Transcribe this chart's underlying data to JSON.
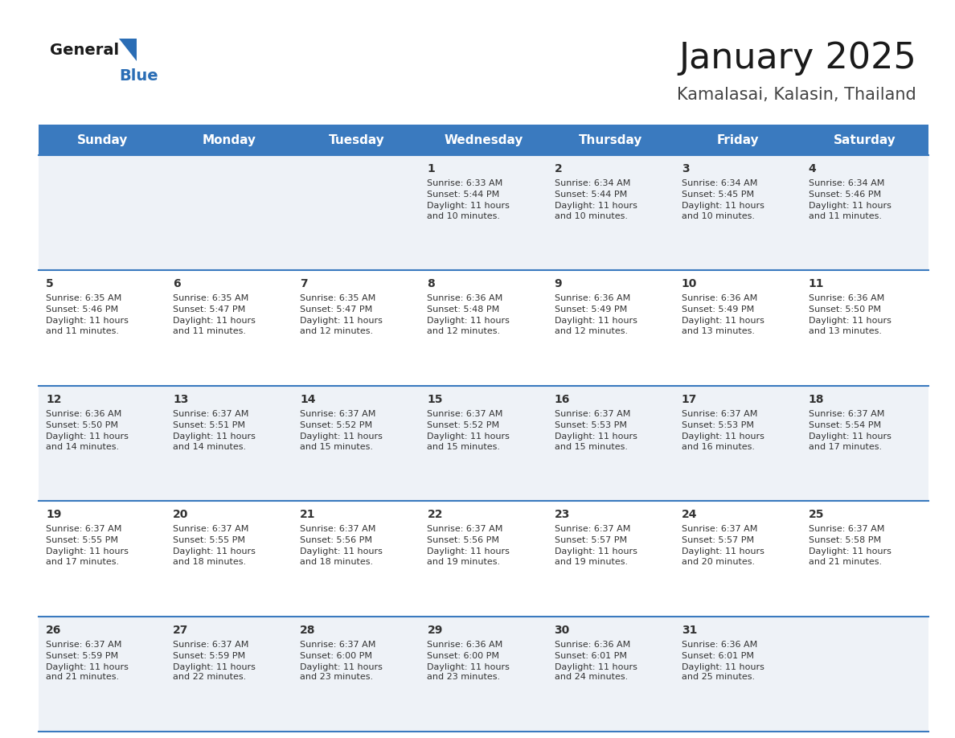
{
  "title": "January 2025",
  "subtitle": "Kamalasai, Kalasin, Thailand",
  "days_of_week": [
    "Sunday",
    "Monday",
    "Tuesday",
    "Wednesday",
    "Thursday",
    "Friday",
    "Saturday"
  ],
  "header_bg": "#3a7abf",
  "header_text": "#ffffff",
  "row_bg_odd": "#eef2f7",
  "row_bg_even": "#ffffff",
  "divider_color": "#3a7abf",
  "text_color": "#333333",
  "title_color": "#1a1a1a",
  "subtitle_color": "#444444",
  "calendar_data": [
    [
      null,
      null,
      null,
      {
        "day": 1,
        "sunrise": "6:33 AM",
        "sunset": "5:44 PM",
        "daylight": "11 hours\nand 10 minutes."
      },
      {
        "day": 2,
        "sunrise": "6:34 AM",
        "sunset": "5:44 PM",
        "daylight": "11 hours\nand 10 minutes."
      },
      {
        "day": 3,
        "sunrise": "6:34 AM",
        "sunset": "5:45 PM",
        "daylight": "11 hours\nand 10 minutes."
      },
      {
        "day": 4,
        "sunrise": "6:34 AM",
        "sunset": "5:46 PM",
        "daylight": "11 hours\nand 11 minutes."
      }
    ],
    [
      {
        "day": 5,
        "sunrise": "6:35 AM",
        "sunset": "5:46 PM",
        "daylight": "11 hours\nand 11 minutes."
      },
      {
        "day": 6,
        "sunrise": "6:35 AM",
        "sunset": "5:47 PM",
        "daylight": "11 hours\nand 11 minutes."
      },
      {
        "day": 7,
        "sunrise": "6:35 AM",
        "sunset": "5:47 PM",
        "daylight": "11 hours\nand 12 minutes."
      },
      {
        "day": 8,
        "sunrise": "6:36 AM",
        "sunset": "5:48 PM",
        "daylight": "11 hours\nand 12 minutes."
      },
      {
        "day": 9,
        "sunrise": "6:36 AM",
        "sunset": "5:49 PM",
        "daylight": "11 hours\nand 12 minutes."
      },
      {
        "day": 10,
        "sunrise": "6:36 AM",
        "sunset": "5:49 PM",
        "daylight": "11 hours\nand 13 minutes."
      },
      {
        "day": 11,
        "sunrise": "6:36 AM",
        "sunset": "5:50 PM",
        "daylight": "11 hours\nand 13 minutes."
      }
    ],
    [
      {
        "day": 12,
        "sunrise": "6:36 AM",
        "sunset": "5:50 PM",
        "daylight": "11 hours\nand 14 minutes."
      },
      {
        "day": 13,
        "sunrise": "6:37 AM",
        "sunset": "5:51 PM",
        "daylight": "11 hours\nand 14 minutes."
      },
      {
        "day": 14,
        "sunrise": "6:37 AM",
        "sunset": "5:52 PM",
        "daylight": "11 hours\nand 15 minutes."
      },
      {
        "day": 15,
        "sunrise": "6:37 AM",
        "sunset": "5:52 PM",
        "daylight": "11 hours\nand 15 minutes."
      },
      {
        "day": 16,
        "sunrise": "6:37 AM",
        "sunset": "5:53 PM",
        "daylight": "11 hours\nand 15 minutes."
      },
      {
        "day": 17,
        "sunrise": "6:37 AM",
        "sunset": "5:53 PM",
        "daylight": "11 hours\nand 16 minutes."
      },
      {
        "day": 18,
        "sunrise": "6:37 AM",
        "sunset": "5:54 PM",
        "daylight": "11 hours\nand 17 minutes."
      }
    ],
    [
      {
        "day": 19,
        "sunrise": "6:37 AM",
        "sunset": "5:55 PM",
        "daylight": "11 hours\nand 17 minutes."
      },
      {
        "day": 20,
        "sunrise": "6:37 AM",
        "sunset": "5:55 PM",
        "daylight": "11 hours\nand 18 minutes."
      },
      {
        "day": 21,
        "sunrise": "6:37 AM",
        "sunset": "5:56 PM",
        "daylight": "11 hours\nand 18 minutes."
      },
      {
        "day": 22,
        "sunrise": "6:37 AM",
        "sunset": "5:56 PM",
        "daylight": "11 hours\nand 19 minutes."
      },
      {
        "day": 23,
        "sunrise": "6:37 AM",
        "sunset": "5:57 PM",
        "daylight": "11 hours\nand 19 minutes."
      },
      {
        "day": 24,
        "sunrise": "6:37 AM",
        "sunset": "5:57 PM",
        "daylight": "11 hours\nand 20 minutes."
      },
      {
        "day": 25,
        "sunrise": "6:37 AM",
        "sunset": "5:58 PM",
        "daylight": "11 hours\nand 21 minutes."
      }
    ],
    [
      {
        "day": 26,
        "sunrise": "6:37 AM",
        "sunset": "5:59 PM",
        "daylight": "11 hours\nand 21 minutes."
      },
      {
        "day": 27,
        "sunrise": "6:37 AM",
        "sunset": "5:59 PM",
        "daylight": "11 hours\nand 22 minutes."
      },
      {
        "day": 28,
        "sunrise": "6:37 AM",
        "sunset": "6:00 PM",
        "daylight": "11 hours\nand 23 minutes."
      },
      {
        "day": 29,
        "sunrise": "6:36 AM",
        "sunset": "6:00 PM",
        "daylight": "11 hours\nand 23 minutes."
      },
      {
        "day": 30,
        "sunrise": "6:36 AM",
        "sunset": "6:01 PM",
        "daylight": "11 hours\nand 24 minutes."
      },
      {
        "day": 31,
        "sunrise": "6:36 AM",
        "sunset": "6:01 PM",
        "daylight": "11 hours\nand 25 minutes."
      },
      null
    ]
  ],
  "logo_general_color": "#1a1a1a",
  "logo_blue_color": "#2a6db5",
  "cell_font_size": 8.0,
  "day_num_font_size": 10,
  "header_font_size": 11,
  "title_font_size": 32,
  "subtitle_font_size": 15
}
